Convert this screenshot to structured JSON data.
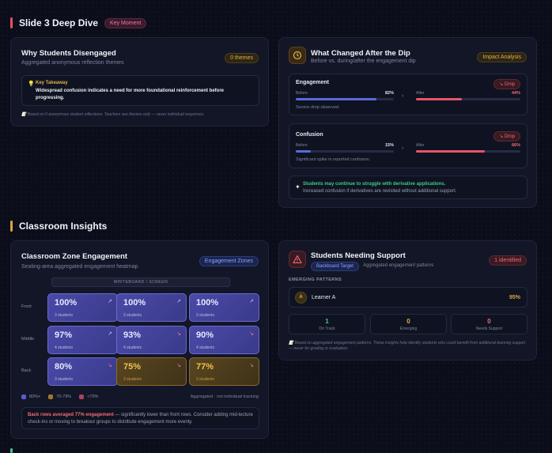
{
  "slide_section": {
    "title": "Slide 3 Deep Dive",
    "badge": "Key Moment"
  },
  "disengaged": {
    "title": "Why Students Disengaged",
    "subtitle": "Aggregated anonymous reflection themes",
    "badge": "0 themes",
    "takeaway_label": "Key Takeaway",
    "takeaway_text": "Widespread confusion indicates a need for more foundational reinforcement before progressing.",
    "footnote": "Based on 0 anonymous student reflections. Teachers see themes only — never individual responses."
  },
  "changed": {
    "title": "What Changed After the Dip",
    "subtitle": "Before vs. during/after the engagement dip",
    "badge": "Impact Analysis",
    "metrics": [
      {
        "name": "Engagement",
        "badge": "↘ Drop",
        "before_label": "Before",
        "before_value": "82%",
        "before_frac": 0.82,
        "after_label": "After",
        "after_value": "44%",
        "after_frac": 0.44,
        "note": "Severe drop observed."
      },
      {
        "name": "Confusion",
        "badge": "↘ Drop",
        "before_label": "Before",
        "before_value": "15%",
        "before_frac": 0.15,
        "after_label": "After",
        "after_value": "66%",
        "after_frac": 0.66,
        "note": "Significant spike in reported confusion."
      }
    ],
    "insight_title": "Students may continue to struggle with derivative applications.",
    "insight_text": "Increased confusion if derivatives are revisited without additional support."
  },
  "classroom_section": {
    "title": "Classroom Insights"
  },
  "zones": {
    "title": "Classroom Zone Engagement",
    "subtitle": "Seating-area aggregated engagement heatmap",
    "badge": "Engagement Zones",
    "board_label": "WHITEBOARD / SCREEN",
    "rows": [
      {
        "label": "Front",
        "cells": [
          {
            "pct": "100%",
            "count": "3 students",
            "arrow": "↗",
            "level": "hi"
          },
          {
            "pct": "100%",
            "count": "3 students",
            "arrow": "↗",
            "level": "hi"
          },
          {
            "pct": "100%",
            "count": "3 students",
            "arrow": "↗",
            "level": "hi"
          }
        ]
      },
      {
        "label": "Middle",
        "cells": [
          {
            "pct": "97%",
            "count": "4 students",
            "arrow": "↗",
            "level": "hi"
          },
          {
            "pct": "93%",
            "count": "4 students",
            "arrow": "↘",
            "level": "hi"
          },
          {
            "pct": "90%",
            "count": "4 students",
            "arrow": "↘",
            "level": "hi"
          }
        ]
      },
      {
        "label": "Back",
        "cells": [
          {
            "pct": "80%",
            "count": "3 students",
            "arrow": "↘",
            "level": "hi"
          },
          {
            "pct": "75%",
            "count": "3 students",
            "arrow": "↘",
            "level": "mid"
          },
          {
            "pct": "77%",
            "count": "3 students",
            "arrow": "↘",
            "level": "mid"
          }
        ]
      }
    ],
    "legend": [
      {
        "label": "80%+",
        "color": "#5a5ad0"
      },
      {
        "label": "70-79%",
        "color": "#a0782a"
      },
      {
        "label": "<70%",
        "color": "#b04060"
      }
    ],
    "legend_note": "Aggregated · not individual tracking",
    "summary_strong": "Back rows averaged 77% engagement",
    "summary_rest": " — significantly lower than front rows. Consider adding mid-lecture check-ins or moving to breakout groups to distribute engagement more evenly."
  },
  "support": {
    "title": "Students Needing Support",
    "tag": "Backboard Target",
    "tag_note": "Aggregated engagement patterns",
    "badge": "1 identified",
    "patterns_label": "EMERGING PATTERNS",
    "learner_initial": "A",
    "learner_name": "Learner A",
    "learner_pct": "95%",
    "stats": [
      {
        "n": "1",
        "label": "On Track",
        "color": "#3fc98a"
      },
      {
        "n": "0",
        "label": "Emerging",
        "color": "#e0b04a"
      },
      {
        "n": "0",
        "label": "Needs Support",
        "color": "#f26a7a"
      }
    ],
    "footnote": "Based on aggregated engagement patterns. These insights help identify students who could benefit from additional learning support — never for grading or evaluation."
  }
}
